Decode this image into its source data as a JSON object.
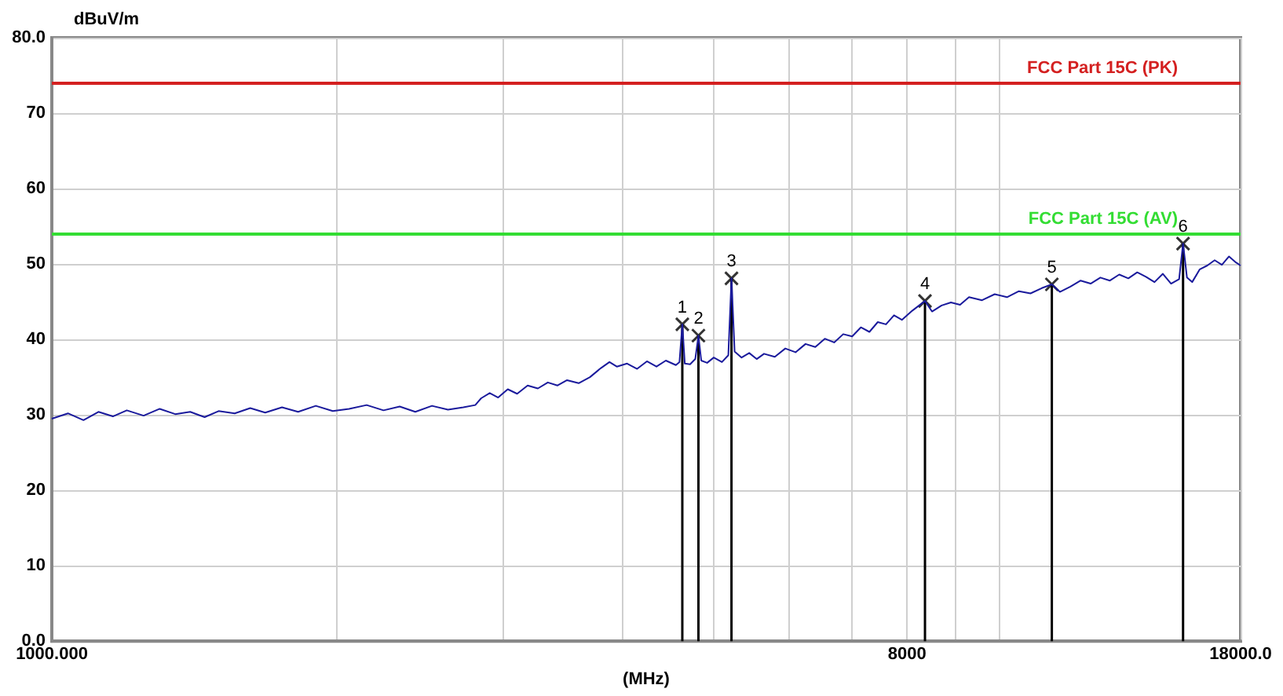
{
  "chart_data": {
    "type": "line",
    "ylabel": "dBuV/m",
    "xlabel": "(MHz)",
    "log": "x",
    "grid": true,
    "xlim": [
      1000,
      18000
    ],
    "ylim": [
      0,
      80
    ],
    "xticks": [
      {
        "value": 1000,
        "label": "1000.000"
      },
      {
        "value": 2000,
        "label": null
      },
      {
        "value": 3000,
        "label": null
      },
      {
        "value": 4000,
        "label": null
      },
      {
        "value": 5000,
        "label": null
      },
      {
        "value": 6000,
        "label": null
      },
      {
        "value": 7000,
        "label": null
      },
      {
        "value": 8000,
        "label": "8000"
      },
      {
        "value": 9000,
        "label": null
      },
      {
        "value": 10000,
        "label": null
      },
      {
        "value": 18000,
        "label": "18000.0"
      }
    ],
    "yticks": [
      {
        "value": 0,
        "label": "0.0"
      },
      10,
      20,
      30,
      40,
      50,
      60,
      70,
      {
        "value": 80,
        "label": "80.0"
      }
    ],
    "ref_lines": [
      {
        "axis": "y",
        "value": 74,
        "label": "FCC Part 15C (PK)",
        "color": "#d42020"
      },
      {
        "axis": "y",
        "value": 54,
        "label": "FCC Part 15C (AV)",
        "color": "#33dd33"
      }
    ],
    "series": [
      {
        "color": "#1a1a9c",
        "x": [
          1000,
          1040,
          1080,
          1120,
          1160,
          1200,
          1250,
          1300,
          1350,
          1400,
          1450,
          1500,
          1560,
          1620,
          1680,
          1750,
          1820,
          1900,
          1980,
          2060,
          2150,
          2240,
          2330,
          2420,
          2520,
          2620,
          2720,
          2800,
          2840,
          2900,
          2960,
          3030,
          3100,
          3180,
          3260,
          3340,
          3420,
          3500,
          3600,
          3700,
          3800,
          3880,
          3950,
          4050,
          4150,
          4250,
          4350,
          4450,
          4560,
          4600,
          4632,
          4660,
          4720,
          4780,
          4817,
          4850,
          4920,
          5000,
          5100,
          5180,
          5220,
          5260,
          5350,
          5450,
          5550,
          5650,
          5800,
          5950,
          6100,
          6250,
          6400,
          6550,
          6700,
          6850,
          7000,
          7150,
          7300,
          7450,
          7600,
          7750,
          7900,
          8100,
          8356,
          8500,
          8700,
          8900,
          9100,
          9300,
          9600,
          9900,
          10200,
          10500,
          10800,
          11100,
          11375,
          11600,
          11900,
          12200,
          12500,
          12800,
          13100,
          13400,
          13700,
          14000,
          14300,
          14600,
          14900,
          15200,
          15500,
          15650,
          15800,
          16000,
          16300,
          16600,
          16900,
          17200,
          17500,
          17800,
          18000
        ],
        "values": [
          29.5,
          30.2,
          29.3,
          30.4,
          29.8,
          30.6,
          29.9,
          30.8,
          30.1,
          30.4,
          29.7,
          30.5,
          30.2,
          30.9,
          30.3,
          31.0,
          30.4,
          31.2,
          30.5,
          30.8,
          31.3,
          30.6,
          31.1,
          30.4,
          31.2,
          30.7,
          31.0,
          31.3,
          32.2,
          32.9,
          32.3,
          33.4,
          32.8,
          33.9,
          33.5,
          34.3,
          33.9,
          34.6,
          34.2,
          35.0,
          36.2,
          37.0,
          36.4,
          36.8,
          36.1,
          37.1,
          36.4,
          37.2,
          36.6,
          37.0,
          42.0,
          36.8,
          36.7,
          37.4,
          40.5,
          37.2,
          36.9,
          37.6,
          37.0,
          37.9,
          48.1,
          38.4,
          37.6,
          38.2,
          37.4,
          38.1,
          37.7,
          38.8,
          38.3,
          39.4,
          39.0,
          40.1,
          39.6,
          40.7,
          40.4,
          41.6,
          41.0,
          42.3,
          42.0,
          43.2,
          42.6,
          43.8,
          45.1,
          43.7,
          44.5,
          44.9,
          44.6,
          45.6,
          45.2,
          46.0,
          45.6,
          46.4,
          46.1,
          46.8,
          47.3,
          46.3,
          47.0,
          47.8,
          47.4,
          48.2,
          47.8,
          48.6,
          48.1,
          48.9,
          48.3,
          47.6,
          48.7,
          47.4,
          48.0,
          52.7,
          48.2,
          47.6,
          49.3,
          49.8,
          50.5,
          49.9,
          51.0,
          50.2,
          49.8
        ]
      },
      {
        "type": "lollipop",
        "color": "#000000",
        "marker": "cross",
        "x": [
          4632,
          4817,
          5220,
          8356,
          11375,
          15650
        ],
        "values": [
          42.0,
          40.5,
          48.1,
          45.1,
          47.3,
          52.7
        ]
      }
    ],
    "annotations": [
      {
        "text": "1",
        "x": 4632,
        "y": 42.0
      },
      {
        "text": "2",
        "x": 4817,
        "y": 40.5
      },
      {
        "text": "3",
        "x": 5220,
        "y": 48.1
      },
      {
        "text": "4",
        "x": 8356,
        "y": 45.1
      },
      {
        "text": "5",
        "x": 11375,
        "y": 47.3
      },
      {
        "text": "6",
        "x": 15650,
        "y": 52.7
      }
    ]
  }
}
